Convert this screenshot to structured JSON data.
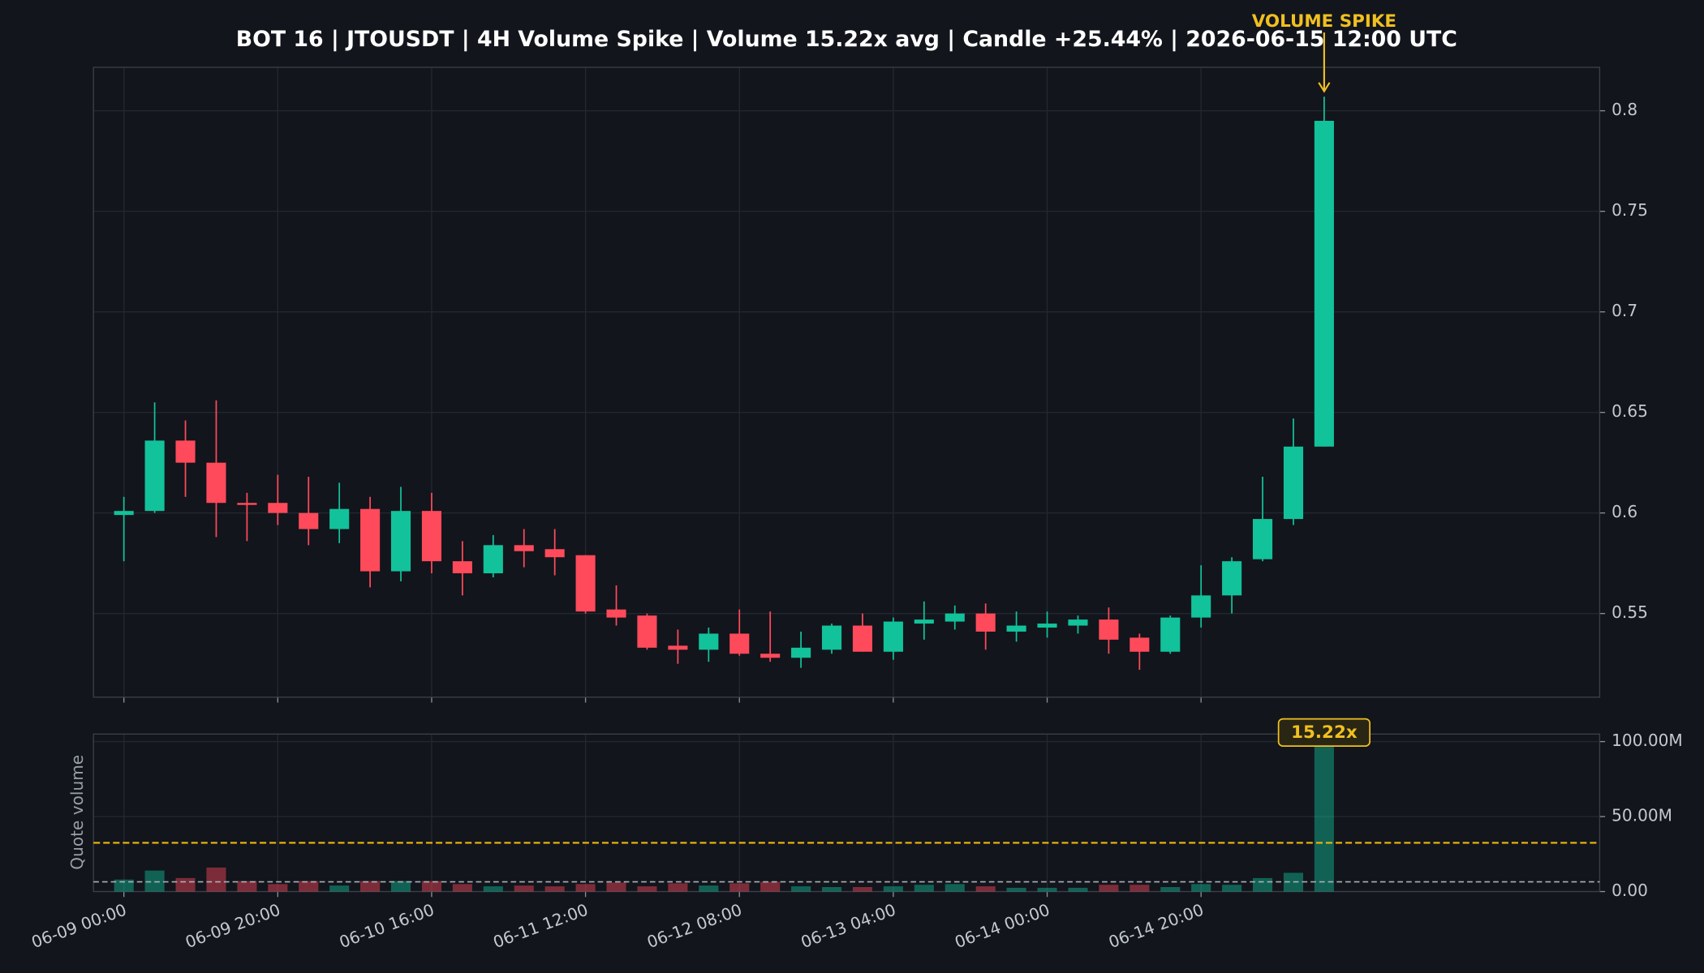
{
  "chart_data": [
    {
      "type": "candlestick",
      "title": "BOT 16 | JTOUSDT | 4H Volume Spike | Volume 15.22x avg | Candle +25.44% | 2026-06-15 12:00 UTC",
      "annotation": "VOLUME SPIKE",
      "x": [
        "06-09 00:00",
        null,
        null,
        null,
        null,
        "06-09 20:00",
        null,
        null,
        null,
        null,
        "06-10 16:00",
        null,
        null,
        null,
        null,
        "06-11 12:00",
        null,
        null,
        null,
        null,
        "06-12 08:00",
        null,
        null,
        null,
        null,
        "06-13 04:00",
        null,
        null,
        null,
        null,
        "06-14 00:00",
        null,
        null,
        null,
        null,
        "06-14 20:00",
        null,
        null,
        null,
        null
      ],
      "open": [
        0.599,
        0.601,
        0.636,
        0.625,
        0.605,
        0.605,
        0.6,
        0.592,
        0.602,
        0.571,
        0.601,
        0.576,
        0.57,
        0.584,
        0.582,
        0.579,
        0.552,
        0.549,
        0.534,
        0.532,
        0.54,
        0.53,
        0.528,
        0.532,
        0.544,
        0.531,
        0.545,
        0.546,
        0.55,
        0.541,
        0.543,
        0.544,
        0.547,
        0.538,
        0.531,
        0.548,
        0.559,
        0.577,
        0.597,
        0.633
      ],
      "high": [
        0.608,
        0.655,
        0.646,
        0.656,
        0.61,
        0.619,
        0.618,
        0.615,
        0.608,
        0.613,
        0.61,
        0.586,
        0.589,
        0.592,
        0.592,
        0.579,
        0.564,
        0.55,
        0.542,
        0.543,
        0.552,
        0.551,
        0.541,
        0.545,
        0.55,
        0.548,
        0.556,
        0.554,
        0.555,
        0.551,
        0.551,
        0.549,
        0.553,
        0.54,
        0.549,
        0.574,
        0.578,
        0.618,
        0.647,
        0.807
      ],
      "low": [
        0.576,
        0.6,
        0.608,
        0.588,
        0.586,
        0.594,
        0.584,
        0.585,
        0.563,
        0.566,
        0.57,
        0.559,
        0.568,
        0.573,
        0.569,
        0.55,
        0.544,
        0.532,
        0.525,
        0.526,
        0.529,
        0.526,
        0.523,
        0.53,
        0.531,
        0.527,
        0.537,
        0.542,
        0.532,
        0.536,
        0.538,
        0.54,
        0.53,
        0.522,
        0.53,
        0.543,
        0.55,
        0.576,
        0.594,
        0.633
      ],
      "close": [
        0.601,
        0.636,
        0.625,
        0.605,
        0.604,
        0.6,
        0.592,
        0.602,
        0.571,
        0.601,
        0.576,
        0.57,
        0.584,
        0.581,
        0.578,
        0.551,
        0.548,
        0.533,
        0.532,
        0.54,
        0.53,
        0.528,
        0.533,
        0.544,
        0.531,
        0.546,
        0.547,
        0.55,
        0.541,
        0.544,
        0.545,
        0.547,
        0.537,
        0.531,
        0.548,
        0.559,
        0.576,
        0.597,
        0.633,
        0.795
      ],
      "up_color": "#12c29a",
      "down_color": "#fe4a5a",
      "ylim": [
        0.5084,
        0.8216
      ],
      "yticks": [
        0.55,
        0.6,
        0.65,
        0.7,
        0.75,
        0.8
      ],
      "grid": true
    },
    {
      "type": "bar",
      "ylabel": "Quote volume",
      "annotation": "15.22x",
      "values": [
        8000000,
        14000000,
        9000000,
        16000000,
        7000000,
        5000000,
        7000000,
        4000000,
        7000000,
        7000000,
        7000000,
        5000000,
        3500000,
        4000000,
        3500000,
        5000000,
        6000000,
        3500000,
        5500000,
        4000000,
        5500000,
        6500000,
        3500000,
        3000000,
        3000000,
        3500000,
        4500000,
        5000000,
        3500000,
        2500000,
        2500000,
        2500000,
        4500000,
        4500000,
        3000000,
        5000000,
        4500000,
        9000000,
        12500000,
        103000000
      ],
      "average": 6500000,
      "average_color": "#aab0b8",
      "threshold": 32500000,
      "threshold_color": "#f0b90b",
      "ylim": [
        0,
        105000000
      ],
      "yticks": [
        {
          "value": 0,
          "label": "0.00"
        },
        {
          "value": 50000000,
          "label": "50.00M"
        },
        {
          "value": 100000000,
          "label": "100.00M"
        }
      ],
      "grid": true
    }
  ]
}
